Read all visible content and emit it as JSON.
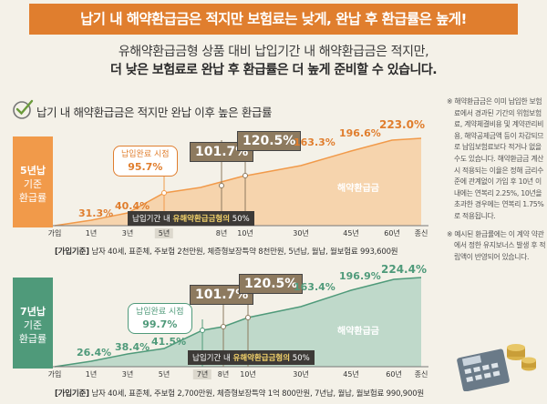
{
  "banner_title": "납기 내 해약환급금은 적지만 보험료는 낮게, 완납 후 환급률은 높게!",
  "subtitle_line1": "유해약환급금형 상품 대비 납입기간 내 해약환급금은 적지만,",
  "subtitle_line2": "더 낮은 보험료로 완납 후 환급률은 더 높게 준비할 수 있습니다.",
  "section_title": "납기 내 해약환급금은 적지만 완납 이후 높은 환급률",
  "colors": {
    "banner": "#e07e2e",
    "orange": "#f19a4a",
    "green": "#4f9a7a",
    "box": "#8d7a5f"
  },
  "chart5": {
    "side_label": [
      "5년납",
      "기준",
      "환급률"
    ],
    "bubble": [
      "납입완료 시점",
      "95.7%"
    ],
    "tag_prefix": "납입기간 내 ",
    "tag_bold": "유해약환급금형의",
    "tag_suffix": " 50%",
    "area_label": "해약환급금",
    "info_label": "[가입기준]",
    "info_text": " 남자 40세, 표준체, 주보험 2천만원, 체증형보장특약 8천만원, 5년납, 월납, 월보험료 993,600원",
    "points": [
      {
        "x": "1년",
        "label": "31.3%"
      },
      {
        "x": "3년",
        "label": "40.4%"
      },
      {
        "x": "5년",
        "label": ""
      },
      {
        "x": "8년",
        "label": "101.7%"
      },
      {
        "x": "10년",
        "label": "120.5%"
      },
      {
        "x": "30년",
        "label": "163.3%"
      },
      {
        "x": "45년",
        "label": "196.6%"
      },
      {
        "x": "60년",
        "label": "223.0%"
      }
    ],
    "ticks": [
      "가입",
      "1년",
      "3년",
      "5년",
      "8년",
      "10년",
      "30년",
      "45년",
      "60년",
      "종신"
    ]
  },
  "chart7": {
    "side_label": [
      "7년납",
      "기준",
      "환급률"
    ],
    "bubble": [
      "납입완료 시점",
      "99.7%"
    ],
    "tag_prefix": "납입기간 내 ",
    "tag_bold": "유해약환급금형의",
    "tag_suffix": " 50%",
    "area_label": "해약환급금",
    "info_label": "[가입기준]",
    "info_text": " 남자 40세, 표준체, 주보험 2,700만원, 체증형보장특약 1억 800만원, 7년납, 월납, 월보험료 990,900원",
    "points": [
      {
        "x": "1년",
        "label": "26.4%"
      },
      {
        "x": "3년",
        "label": "38.4%"
      },
      {
        "x": "5년",
        "label": "41.5%"
      },
      {
        "x": "7년",
        "label": ""
      },
      {
        "x": "8년",
        "label": "101.7%"
      },
      {
        "x": "10년",
        "label": "120.5%"
      },
      {
        "x": "30년",
        "label": "163.4%"
      },
      {
        "x": "45년",
        "label": "196.9%"
      },
      {
        "x": "60년",
        "label": "224.4%"
      }
    ],
    "ticks": [
      "가입",
      "1년",
      "3년",
      "5년",
      "7년",
      "8년",
      "10년",
      "30년",
      "45년",
      "60년",
      "종신"
    ]
  },
  "notes": [
    "※ 해약환급금은 이미 납입한 보험료에서 경과된 기간의 위험보험료, 계약체결비용 및 계약관리비용, 해약공제금액 등이 차감되므로 납입보험료보다 적거나 없을 수도 있습니다. 해약환급금 계산시 적용되는 이율은 정해 금리수준에 관계없이 가입 후 10년 이내에는 연복리 2.25%, 10년을 초과한 경우에는 연복리 1.75%로 적용됩니다.",
    "※ 예시된 환급률에는 이 계약 약관에서 정한 유지보너스 발생 후 적립액이 반영되어 있습니다."
  ],
  "chart_data": [
    {
      "type": "area",
      "title": "5년납 기준 환급률",
      "categories": [
        "가입",
        "1년",
        "3년",
        "5년",
        "8년",
        "10년",
        "30년",
        "45년",
        "60년",
        "종신"
      ],
      "series": [
        {
          "name": "해약환급금",
          "values": [
            null,
            31.3,
            40.4,
            95.7,
            101.7,
            120.5,
            163.3,
            196.6,
            223.0,
            null
          ]
        }
      ]
    },
    {
      "type": "area",
      "title": "7년납 기준 환급률",
      "categories": [
        "가입",
        "1년",
        "3년",
        "5년",
        "7년",
        "8년",
        "10년",
        "30년",
        "45년",
        "60년",
        "종신"
      ],
      "series": [
        {
          "name": "해약환급금",
          "values": [
            null,
            26.4,
            38.4,
            41.5,
            99.7,
            101.7,
            120.5,
            163.4,
            196.9,
            224.4,
            null
          ]
        }
      ]
    }
  ]
}
